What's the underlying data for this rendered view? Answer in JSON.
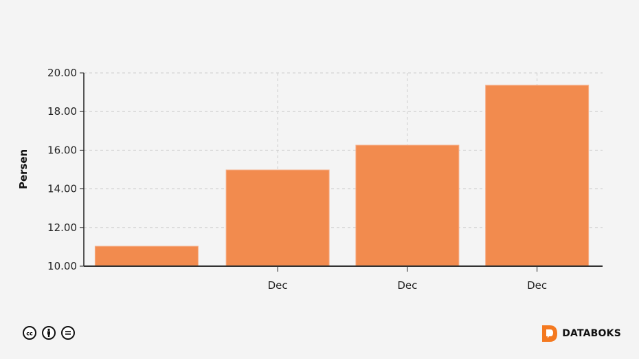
{
  "chart_data": {
    "type": "bar",
    "categories": [
      "",
      "Dec",
      "Dec",
      "Dec"
    ],
    "values": [
      11.03,
      14.98,
      16.26,
      19.36
    ],
    "ylabel": "Persen",
    "xlabel": "",
    "ylim": [
      10,
      20
    ],
    "yticks": [
      "10.00",
      "12.00",
      "14.00",
      "16.00",
      "18.00",
      "20.00"
    ],
    "grid": true,
    "bar_color": "#f28b4e"
  },
  "footer": {
    "license_icons": [
      "cc-icon",
      "by-icon",
      "nd-icon"
    ],
    "brand": "DATABOKS",
    "brand_color": "#f47920"
  }
}
